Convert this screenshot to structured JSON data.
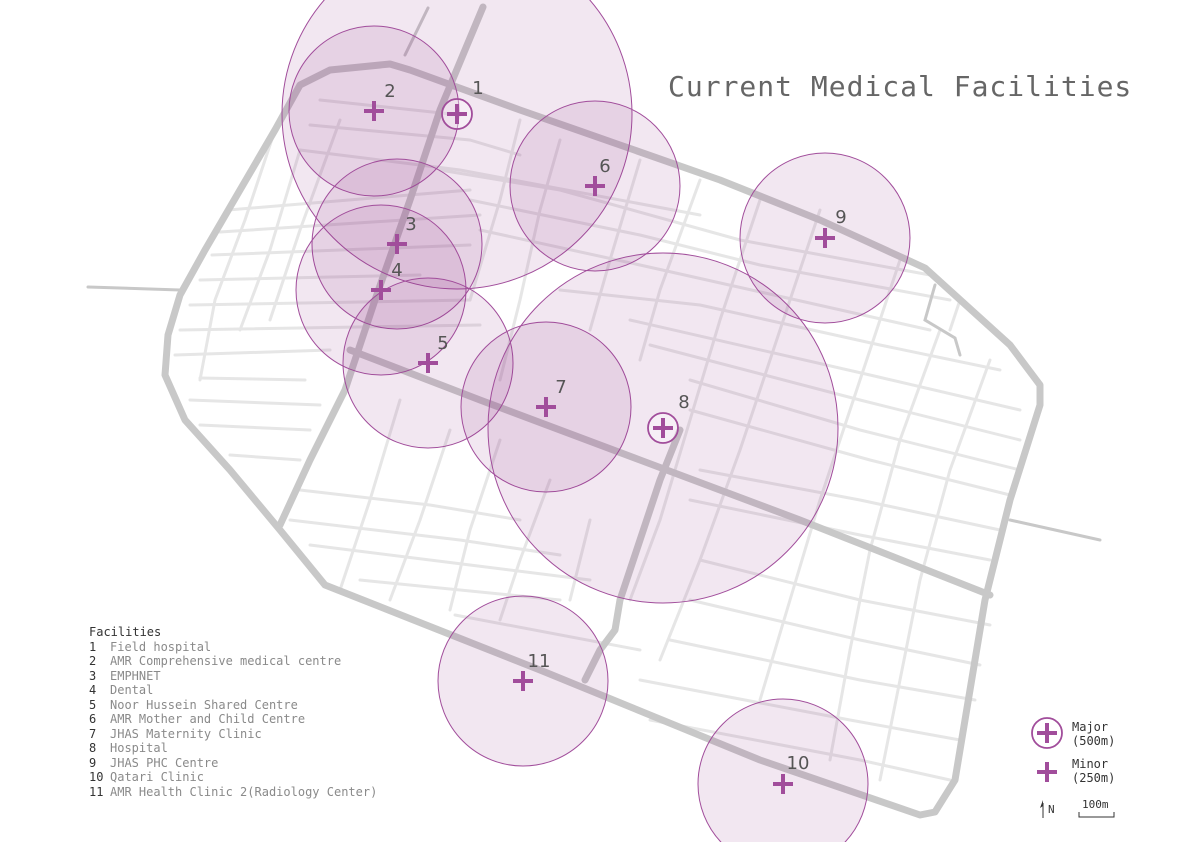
{
  "title": "Current Medical Facilities",
  "colors": {
    "road_major": "#c8c8c8",
    "road_minor": "#e6e6e6",
    "circle_fill": "rgba(150, 60, 140, 0.12)",
    "circle_stroke": "#a14d9b",
    "marker": "#a14d9b",
    "label": "#555555"
  },
  "legend": {
    "heading": "Facilities",
    "items": [
      {
        "num": "1",
        "name": "Field hospital"
      },
      {
        "num": "2",
        "name": "AMR Comprehensive medical centre"
      },
      {
        "num": "3",
        "name": "EMPHNET"
      },
      {
        "num": "4",
        "name": "Dental"
      },
      {
        "num": "5",
        "name": "Noor Hussein Shared Centre"
      },
      {
        "num": "6",
        "name": "AMR Mother and Child Centre"
      },
      {
        "num": "7",
        "name": "JHAS Maternity Clinic"
      },
      {
        "num": "8",
        "name": "Hospital"
      },
      {
        "num": "9",
        "name": "JHAS PHC Centre"
      },
      {
        "num": "10",
        "name": "Qatari Clinic"
      },
      {
        "num": "11",
        "name": "AMR Health Clinic 2(Radiology Center)"
      }
    ]
  },
  "key": {
    "major_label": "Major",
    "major_range": "(500m)",
    "minor_label": "Minor",
    "minor_range": "(250m)",
    "north": "N",
    "scale": "100m"
  },
  "facilities": [
    {
      "num": "1",
      "type": "major"
    },
    {
      "num": "2",
      "type": "minor"
    },
    {
      "num": "3",
      "type": "minor"
    },
    {
      "num": "4",
      "type": "minor"
    },
    {
      "num": "5",
      "type": "minor"
    },
    {
      "num": "6",
      "type": "minor"
    },
    {
      "num": "7",
      "type": "minor"
    },
    {
      "num": "8",
      "type": "major"
    },
    {
      "num": "9",
      "type": "minor"
    },
    {
      "num": "10",
      "type": "minor"
    },
    {
      "num": "11",
      "type": "minor"
    }
  ]
}
